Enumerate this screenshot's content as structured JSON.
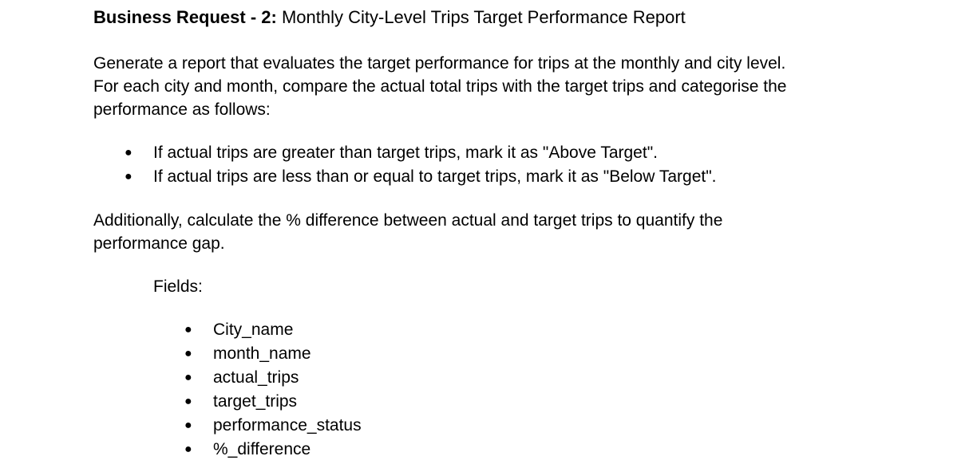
{
  "title": {
    "bold": "Business Request - 2:",
    "rest": " Monthly City-Level Trips Target Performance Report"
  },
  "intro": "Generate a report that evaluates the target performance for trips at the monthly and city level. For each city and month, compare the actual total trips with the target trips and categorise the performance as follows:",
  "rules": [
    "If actual trips are greater than target trips, mark it as \"Above Target\".",
    "If actual trips are less than or equal to target trips, mark it as \"Below Target\"."
  ],
  "additional": "Additionally, calculate the % difference between actual and target trips to quantify the performance gap.",
  "fields_label": "Fields:",
  "fields": [
    "City_name",
    "month_name",
    "actual_trips",
    "target_trips",
    "performance_status",
    "%_difference"
  ],
  "bullet_glyph": "●"
}
